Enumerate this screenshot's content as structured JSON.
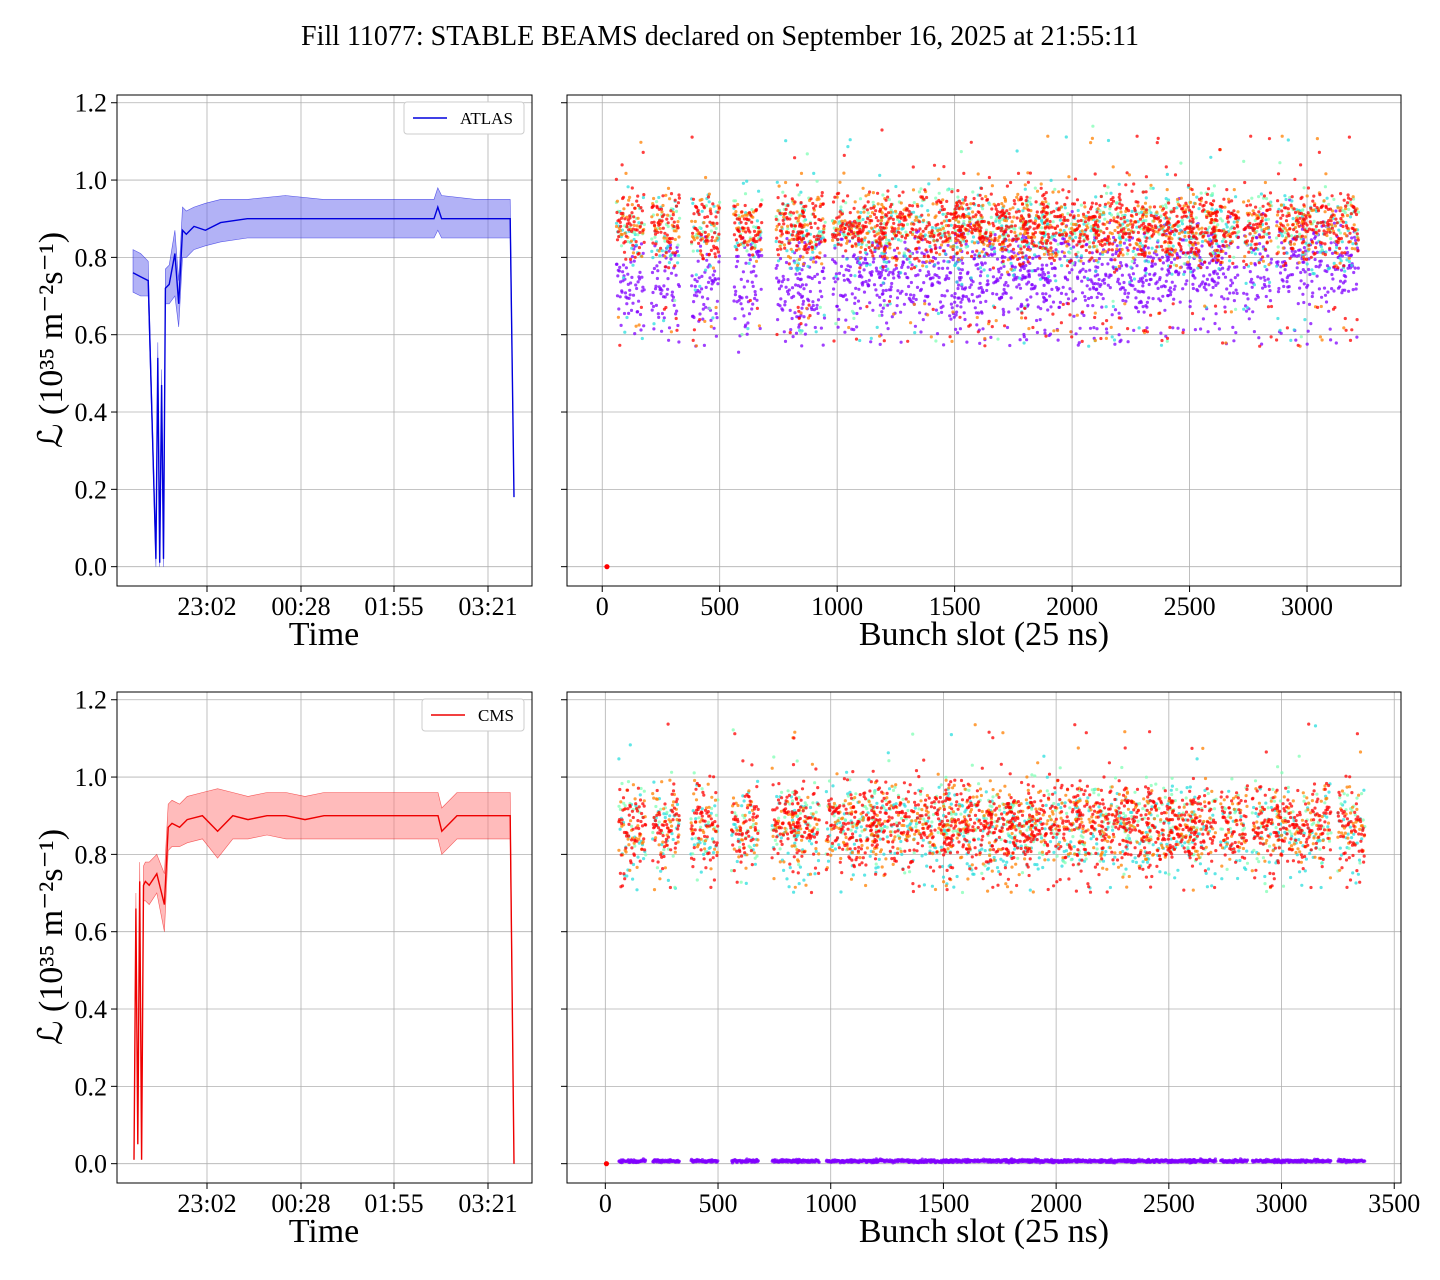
{
  "title": "Fill 11077: STABLE BEAMS declared on September 16, 2025 at 21:55:11",
  "chart_data": [
    {
      "id": "atlas-time",
      "type": "line",
      "title": "",
      "xlabel": "Time",
      "ylabel": "ℒ (10³⁵ m⁻²s⁻¹)",
      "xtick_labels": [
        "23:02",
        "00:28",
        "01:55",
        "03:21"
      ],
      "ylim": [
        -0.05,
        1.22
      ],
      "yticks": [
        0.0,
        0.2,
        0.4,
        0.6,
        0.8,
        1.0,
        1.2
      ],
      "grid": true,
      "legend": "top-right",
      "series": [
        {
          "name": "ATLAS",
          "color": "#0000dd",
          "band_color": "#6666ee",
          "x": [
            0.0,
            0.02,
            0.04,
            0.06,
            0.065,
            0.07,
            0.075,
            0.08,
            0.085,
            0.095,
            0.11,
            0.12,
            0.13,
            0.14,
            0.16,
            0.19,
            0.23,
            0.3,
            0.4,
            0.5,
            0.6,
            0.7,
            0.79,
            0.8,
            0.81,
            0.9,
            0.95,
            0.99,
            1.0
          ],
          "y": [
            0.76,
            0.75,
            0.74,
            0.02,
            0.54,
            0.01,
            0.47,
            0.02,
            0.72,
            0.73,
            0.81,
            0.68,
            0.87,
            0.86,
            0.88,
            0.87,
            0.89,
            0.9,
            0.9,
            0.9,
            0.9,
            0.9,
            0.9,
            0.93,
            0.9,
            0.9,
            0.9,
            0.9,
            0.18
          ],
          "band_low": [
            0.71,
            0.7,
            0.7,
            0.0,
            0.5,
            0.0,
            0.43,
            0.0,
            0.68,
            0.68,
            0.7,
            0.62,
            0.8,
            0.8,
            0.82,
            0.83,
            0.84,
            0.85,
            0.85,
            0.85,
            0.85,
            0.85,
            0.85,
            0.87,
            0.85,
            0.85,
            0.85,
            0.85,
            0.18
          ],
          "band_high": [
            0.82,
            0.81,
            0.79,
            0.04,
            0.58,
            0.03,
            0.51,
            0.04,
            0.77,
            0.78,
            0.87,
            0.74,
            0.93,
            0.92,
            0.93,
            0.94,
            0.95,
            0.95,
            0.96,
            0.95,
            0.95,
            0.95,
            0.95,
            0.98,
            0.96,
            0.95,
            0.95,
            0.95,
            0.18
          ]
        }
      ]
    },
    {
      "id": "atlas-bunch",
      "type": "scatter",
      "title": "",
      "xlabel": "Bunch slot (25 ns)",
      "ylabel": "",
      "xlim": [
        -150,
        3400
      ],
      "ylim": [
        -0.05,
        1.22
      ],
      "xticks": [
        0,
        500,
        1000,
        1500,
        2000,
        2500,
        3000
      ],
      "yticks": [
        0.0,
        0.2,
        0.4,
        0.6,
        0.8,
        1.0,
        1.2
      ],
      "grid": true,
      "colormap": [
        "#8000ff",
        "#2adddd",
        "#80ffb4",
        "#ff8000",
        "#ff0000"
      ],
      "trains": {
        "starts": [
          60,
          210,
          380,
          560,
          740,
          830,
          980,
          1090,
          1180,
          1300,
          1420,
          1500,
          1600,
          1700,
          1780,
          1870,
          1990,
          2090,
          2200,
          2300,
          2400,
          2500,
          2590,
          2730,
          2870,
          2980,
          3100
        ],
        "length": 120,
        "last_slot": 3240,
        "red_level": 0.88,
        "red_spread": 0.045,
        "purple_level": 0.72,
        "purple_spread": 0.06,
        "purple_gain_per_1000": 0.02,
        "low_outlier_level": 0.57,
        "outlier_rate": 0.05
      },
      "isolated_points": [
        {
          "x": 20,
          "y": 0.0,
          "color": "#ff0000"
        }
      ]
    },
    {
      "id": "cms-time",
      "type": "line",
      "title": "",
      "xlabel": "Time",
      "ylabel": "ℒ (10³⁵ m⁻²s⁻¹)",
      "xtick_labels": [
        "23:02",
        "00:28",
        "01:55",
        "03:21"
      ],
      "ylim": [
        -0.05,
        1.22
      ],
      "yticks": [
        0.0,
        0.2,
        0.4,
        0.6,
        0.8,
        1.0,
        1.2
      ],
      "grid": true,
      "legend": "top-right",
      "series": [
        {
          "name": "CMS",
          "color": "#ee0000",
          "band_color": "#ff7777",
          "x": [
            0.0,
            0.005,
            0.01,
            0.015,
            0.02,
            0.025,
            0.03,
            0.04,
            0.06,
            0.08,
            0.09,
            0.1,
            0.12,
            0.14,
            0.18,
            0.22,
            0.26,
            0.3,
            0.35,
            0.4,
            0.45,
            0.5,
            0.55,
            0.6,
            0.65,
            0.7,
            0.75,
            0.8,
            0.81,
            0.85,
            0.9,
            0.95,
            0.99,
            1.0
          ],
          "y": [
            0.01,
            0.66,
            0.05,
            0.73,
            0.01,
            0.72,
            0.73,
            0.72,
            0.75,
            0.67,
            0.87,
            0.88,
            0.87,
            0.89,
            0.9,
            0.86,
            0.9,
            0.89,
            0.9,
            0.9,
            0.89,
            0.9,
            0.9,
            0.9,
            0.9,
            0.9,
            0.9,
            0.9,
            0.86,
            0.9,
            0.9,
            0.9,
            0.9,
            0.0
          ],
          "band_low": [
            0.01,
            0.62,
            0.05,
            0.69,
            0.01,
            0.68,
            0.68,
            0.67,
            0.7,
            0.6,
            0.81,
            0.82,
            0.82,
            0.83,
            0.84,
            0.79,
            0.84,
            0.84,
            0.85,
            0.84,
            0.84,
            0.84,
            0.84,
            0.84,
            0.84,
            0.84,
            0.84,
            0.84,
            0.8,
            0.84,
            0.84,
            0.84,
            0.84,
            0.0
          ],
          "band_high": [
            0.01,
            0.7,
            0.05,
            0.78,
            0.01,
            0.77,
            0.78,
            0.78,
            0.8,
            0.75,
            0.93,
            0.94,
            0.93,
            0.95,
            0.96,
            0.97,
            0.96,
            0.95,
            0.96,
            0.96,
            0.95,
            0.96,
            0.96,
            0.96,
            0.96,
            0.96,
            0.96,
            0.96,
            0.92,
            0.96,
            0.96,
            0.96,
            0.96,
            0.0
          ]
        }
      ]
    },
    {
      "id": "cms-bunch",
      "type": "scatter",
      "title": "",
      "xlabel": "Bunch slot (25 ns)",
      "ylabel": "",
      "xlim": [
        -170,
        3530
      ],
      "ylim": [
        -0.05,
        1.22
      ],
      "xticks": [
        0,
        500,
        1000,
        1500,
        2000,
        2500,
        3000,
        3500
      ],
      "yticks": [
        0.0,
        0.2,
        0.4,
        0.6,
        0.8,
        1.0,
        1.2
      ],
      "grid": true,
      "colormap": [
        "#8000ff",
        "#2adddd",
        "#80ffb4",
        "#ff8000",
        "#ff0000"
      ],
      "trains": {
        "starts": [
          60,
          210,
          380,
          560,
          740,
          830,
          980,
          1090,
          1180,
          1300,
          1420,
          1500,
          1600,
          1700,
          1780,
          1870,
          1990,
          2090,
          2200,
          2300,
          2400,
          2500,
          2590,
          2730,
          2870,
          2980,
          3100,
          3250
        ],
        "length": 120,
        "last_slot": 3430,
        "red_level": 0.88,
        "red_spread": 0.05,
        "purple_level": 0.007,
        "purple_spread": 0.002,
        "purple_gain_per_1000": 0.0,
        "low_outlier_level": 0.7,
        "outlier_rate": 0.06
      },
      "isolated_points": [
        {
          "x": 5,
          "y": 0.0,
          "color": "#ff0000"
        }
      ]
    }
  ]
}
